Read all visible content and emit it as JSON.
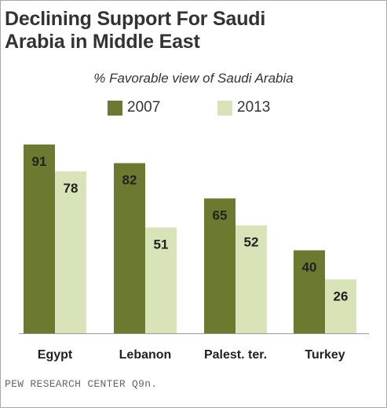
{
  "title_line1": "Declining Support For Saudi",
  "title_line2": "Arabia in Middle East",
  "source": "PEW RESEARCH CENTER Q9n.",
  "colors": {
    "series_2007": "#6b7a2e",
    "series_2013": "#d8e3b7",
    "label_text": "#222222",
    "axis": "#999999"
  },
  "chart_data": {
    "type": "bar",
    "title": "Declining Support For Saudi Arabia in Middle East",
    "subtitle": "% Favorable view of Saudi Arabia",
    "categories": [
      "Egypt",
      "Lebanon",
      "Palest. ter.",
      "Turkey"
    ],
    "series": [
      {
        "name": "2007",
        "values": [
          91,
          82,
          65,
          40
        ]
      },
      {
        "name": "2013",
        "values": [
          78,
          51,
          52,
          26
        ]
      }
    ],
    "ylim": [
      0,
      100
    ],
    "grid": false,
    "legend_position": "top-center",
    "xlabel": "",
    "ylabel": ""
  }
}
